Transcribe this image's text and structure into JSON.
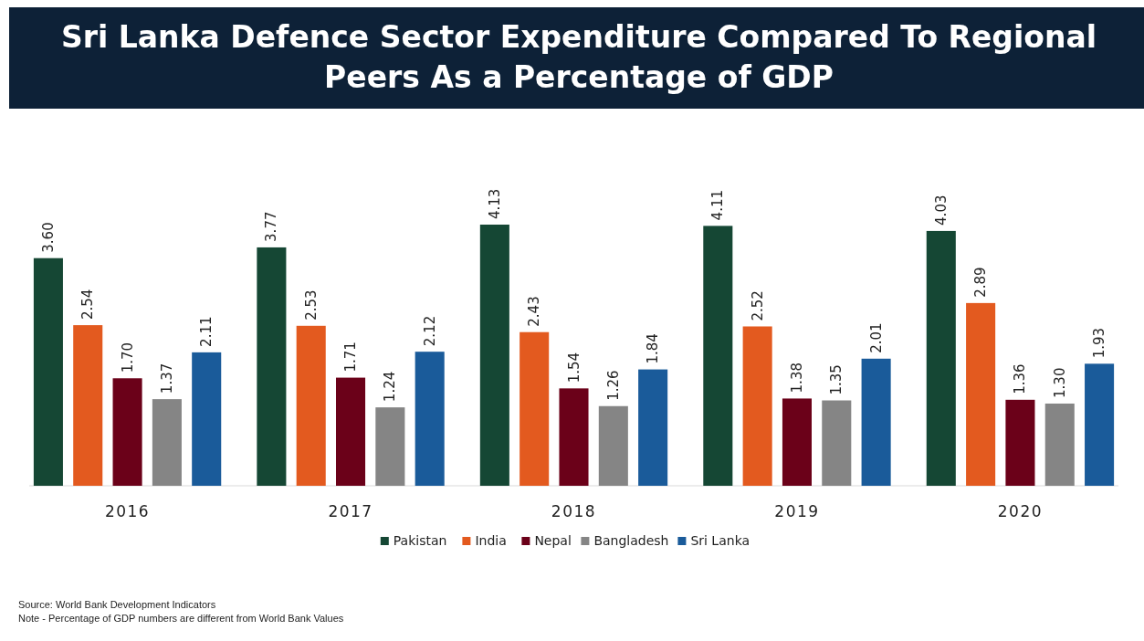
{
  "chart_data": {
    "type": "bar",
    "title": "Sri Lanka Defence Sector Expenditure Compared To Regional Peers As a Percentage of GDP",
    "categories": [
      "2016",
      "2017",
      "2018",
      "2019",
      "2020"
    ],
    "series": [
      {
        "name": "Pakistan",
        "color": "#154734",
        "values": [
          3.6,
          3.77,
          4.13,
          4.11,
          4.03
        ],
        "value_labels": [
          "3.60",
          "3.77",
          "4.13",
          "4.11",
          "4.03"
        ]
      },
      {
        "name": "India",
        "color": "#e35a1f",
        "values": [
          2.54,
          2.53,
          2.43,
          2.52,
          2.89
        ],
        "value_labels": [
          "2.54",
          "2.53",
          "2.43",
          "2.52",
          "2.89"
        ]
      },
      {
        "name": "Nepal",
        "color": "#6b0119",
        "values": [
          1.7,
          1.71,
          1.54,
          1.38,
          1.36
        ],
        "value_labels": [
          "1.70",
          "1.71",
          "1.54",
          "1.38",
          "1.36"
        ]
      },
      {
        "name": "Bangladesh",
        "color": "#858585",
        "values": [
          1.37,
          1.24,
          1.26,
          1.35,
          1.3
        ],
        "value_labels": [
          "1.37",
          "1.24",
          "1.26",
          "1.35",
          "1.30"
        ]
      },
      {
        "name": "Sri Lanka",
        "color": "#1a5b9a",
        "values": [
          2.11,
          2.12,
          1.84,
          2.01,
          1.93
        ],
        "value_labels": [
          "2.11",
          "2.12",
          "1.84",
          "2.01",
          "1.93"
        ]
      }
    ],
    "legend": "bottom",
    "annotations": [
      "Source: World Bank Development Indicators",
      "Note - Percentage of GDP numbers are different from World Bank Values"
    ]
  }
}
